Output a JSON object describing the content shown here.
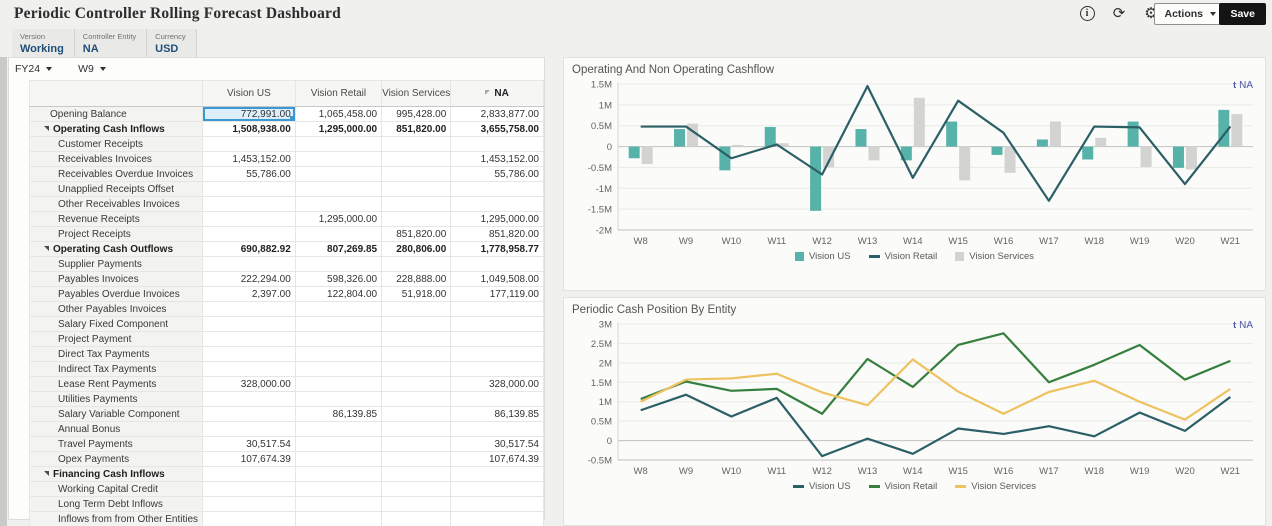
{
  "header": {
    "title": "Periodic Controller Rolling Forecast Dashboard",
    "actions_label": "Actions",
    "save_label": "Save",
    "icons": {
      "info": "i",
      "refresh": "⟳",
      "settings": "⚙"
    }
  },
  "pov": [
    {
      "label": "Version",
      "value": "Working"
    },
    {
      "label": "Controller Entity",
      "value": "NA"
    },
    {
      "label": "Currency",
      "value": "USD"
    }
  ],
  "grid": {
    "year_selector": "FY24",
    "week_selector": "W9",
    "columns": [
      {
        "label": "Vision US"
      },
      {
        "label": "Vision Retail"
      },
      {
        "label": "Vision Services"
      },
      {
        "label": "NA",
        "bold": true,
        "flag": true
      }
    ],
    "rows": [
      {
        "label": "Opening Balance",
        "level": 0,
        "values": [
          "772,991.00",
          "1,065,458.00",
          "995,428.00",
          "2,833,877.00"
        ],
        "selected_col": 0
      },
      {
        "label": "Operating Cash Inflows",
        "level": 0,
        "parent": true,
        "values": [
          "1,508,938.00",
          "1,295,000.00",
          "851,820.00",
          "3,655,758.00"
        ]
      },
      {
        "label": "Customer Receipts",
        "level": 1,
        "values": [
          "",
          "",
          "",
          ""
        ]
      },
      {
        "label": "Receivables Invoices",
        "level": 1,
        "values": [
          "1,453,152.00",
          "",
          "",
          "1,453,152.00"
        ]
      },
      {
        "label": "Receivables Overdue Invoices",
        "level": 1,
        "values": [
          "55,786.00",
          "",
          "",
          "55,786.00"
        ]
      },
      {
        "label": "Unapplied Receipts Offset",
        "level": 1,
        "values": [
          "",
          "",
          "",
          ""
        ]
      },
      {
        "label": "Other Receivables Invoices",
        "level": 1,
        "values": [
          "",
          "",
          "",
          ""
        ]
      },
      {
        "label": "Revenue Receipts",
        "level": 1,
        "values": [
          "",
          "1,295,000.00",
          "",
          "1,295,000.00"
        ]
      },
      {
        "label": "Project Receipts",
        "level": 1,
        "values": [
          "",
          "",
          "851,820.00",
          "851,820.00"
        ]
      },
      {
        "label": "Operating Cash Outflows",
        "level": 0,
        "parent": true,
        "values": [
          "690,882.92",
          "807,269.85",
          "280,806.00",
          "1,778,958.77"
        ]
      },
      {
        "label": "Supplier Payments",
        "level": 1,
        "values": [
          "",
          "",
          "",
          ""
        ]
      },
      {
        "label": "Payables Invoices",
        "level": 1,
        "values": [
          "222,294.00",
          "598,326.00",
          "228,888.00",
          "1,049,508.00"
        ]
      },
      {
        "label": "Payables Overdue Invoices",
        "level": 1,
        "values": [
          "2,397.00",
          "122,804.00",
          "51,918.00",
          "177,119.00"
        ]
      },
      {
        "label": "Other Payables Invoices",
        "level": 1,
        "values": [
          "",
          "",
          "",
          ""
        ]
      },
      {
        "label": "Salary Fixed Component",
        "level": 1,
        "values": [
          "",
          "",
          "",
          ""
        ]
      },
      {
        "label": "Project Payment",
        "level": 1,
        "values": [
          "",
          "",
          "",
          ""
        ]
      },
      {
        "label": "Direct Tax Payments",
        "level": 1,
        "values": [
          "",
          "",
          "",
          ""
        ]
      },
      {
        "label": "Indirect Tax Payments",
        "level": 1,
        "values": [
          "",
          "",
          "",
          ""
        ]
      },
      {
        "label": "Lease Rent Payments",
        "level": 1,
        "values": [
          "328,000.00",
          "",
          "",
          "328,000.00"
        ]
      },
      {
        "label": "Utilities Payments",
        "level": 1,
        "values": [
          "",
          "",
          "",
          ""
        ]
      },
      {
        "label": "Salary Variable Component",
        "level": 1,
        "values": [
          "",
          "86,139.85",
          "",
          "86,139.85"
        ]
      },
      {
        "label": "Annual Bonus",
        "level": 1,
        "values": [
          "",
          "",
          "",
          ""
        ]
      },
      {
        "label": "Travel Payments",
        "level": 1,
        "values": [
          "30,517.54",
          "",
          "",
          "30,517.54"
        ]
      },
      {
        "label": "Opex Payments",
        "level": 1,
        "values": [
          "107,674.39",
          "",
          "",
          "107,674.39"
        ]
      },
      {
        "label": "Financing Cash Inflows",
        "level": 0,
        "parent": true,
        "values": [
          "",
          "",
          "",
          ""
        ]
      },
      {
        "label": "Working Capital Credit",
        "level": 1,
        "values": [
          "",
          "",
          "",
          ""
        ]
      },
      {
        "label": "Long Term Debt Inflows",
        "level": 1,
        "values": [
          "",
          "",
          "",
          ""
        ]
      },
      {
        "label": "Inflows from from Other Entities",
        "level": 1,
        "values": [
          "",
          "",
          "",
          ""
        ]
      }
    ]
  },
  "chart_data": [
    {
      "type": "bar",
      "title": "Operating And Non Operating Cashflow",
      "pov_icon": "t",
      "pov_label": "NA",
      "categories": [
        "W8",
        "W9",
        "W10",
        "W11",
        "W12",
        "W13",
        "W14",
        "W15",
        "W16",
        "W17",
        "W18",
        "W19",
        "W20",
        "W21"
      ],
      "series": [
        {
          "name": "Vision US",
          "render": "bar",
          "color": "#57b2a9",
          "values": [
            -0.28,
            0.42,
            -0.57,
            0.47,
            -1.54,
            0.42,
            -0.33,
            0.6,
            -0.2,
            0.17,
            -0.31,
            0.6,
            -0.51,
            0.88
          ]
        },
        {
          "name": "Vision Retail",
          "render": "line",
          "color": "#2b5f66",
          "values": [
            0.48,
            0.48,
            -0.28,
            0.05,
            -0.67,
            1.45,
            -0.75,
            1.1,
            0.33,
            -1.3,
            0.48,
            0.46,
            -0.9,
            0.48
          ]
        },
        {
          "name": "Vision Services",
          "render": "bar",
          "color": "#d3d3d1",
          "values": [
            -0.42,
            0.55,
            0.04,
            0.08,
            -0.5,
            -0.33,
            1.17,
            -0.81,
            -0.63,
            0.6,
            0.21,
            -0.49,
            -0.55,
            0.78
          ]
        }
      ],
      "xlabel": "",
      "ylabel": "",
      "ylim": [
        -2,
        1.5
      ],
      "ytick_step": 0.5,
      "unit": "M",
      "grid": true,
      "legend_position": "bottom"
    },
    {
      "type": "line",
      "title": "Periodic Cash Position By Entity",
      "pov_icon": "t",
      "pov_label": "NA",
      "categories": [
        "W8",
        "W9",
        "W10",
        "W11",
        "W12",
        "W13",
        "W14",
        "W15",
        "W16",
        "W17",
        "W18",
        "W19",
        "W20",
        "W21"
      ],
      "series": [
        {
          "name": "Vision US",
          "render": "line",
          "color": "#2b5f66",
          "values": [
            0.78,
            1.18,
            0.62,
            1.1,
            -0.4,
            0.05,
            -0.34,
            0.31,
            0.17,
            0.37,
            0.11,
            0.72,
            0.25,
            1.12
          ]
        },
        {
          "name": "Vision Retail",
          "render": "line",
          "color": "#377f3f",
          "values": [
            1.07,
            1.52,
            1.28,
            1.33,
            0.69,
            2.1,
            1.38,
            2.46,
            2.76,
            1.5,
            1.95,
            2.46,
            1.57,
            2.05
          ]
        },
        {
          "name": "Vision Services",
          "render": "line",
          "color": "#eec25f",
          "values": [
            1.0,
            1.57,
            1.6,
            1.72,
            1.24,
            0.91,
            2.09,
            1.26,
            0.69,
            1.25,
            1.54,
            1.0,
            0.54,
            1.33
          ]
        }
      ],
      "xlabel": "",
      "ylabel": "",
      "ylim": [
        -0.5,
        3
      ],
      "ytick_step": 0.5,
      "unit": "M",
      "grid": true,
      "legend_position": "bottom"
    }
  ]
}
